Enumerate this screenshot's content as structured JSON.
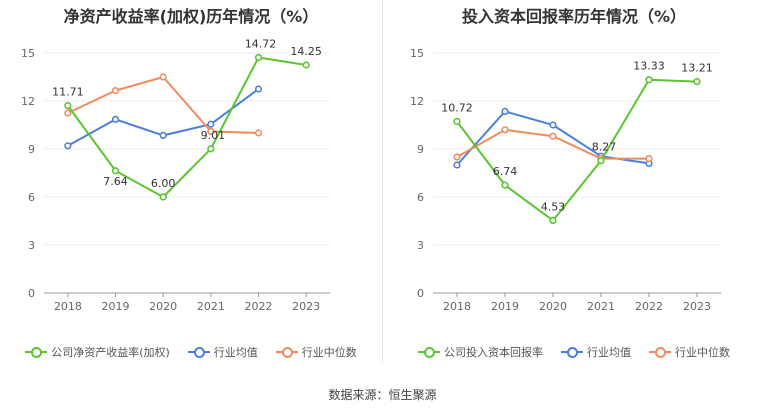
{
  "source_text": "数据来源：恒生聚源",
  "chart_data": [
    {
      "id": "left",
      "type": "line",
      "title": "净资产收益率(加权)历年情况（%）",
      "categories": [
        "2018",
        "2019",
        "2020",
        "2021",
        "2022",
        "2023"
      ],
      "yticks": [
        "0",
        "3",
        "6",
        "9",
        "12",
        "15"
      ],
      "ylim": [
        0,
        15
      ],
      "grid": true,
      "legend_position": "bottom",
      "series": [
        {
          "name": "公司净资产收益率(加权)",
          "color": "#5ac52e",
          "values": [
            11.71,
            7.64,
            6.0,
            9.01,
            14.72,
            14.25
          ],
          "labels": [
            "11.71",
            "7.64",
            "6.00",
            "9.01",
            "14.72",
            "14.25"
          ]
        },
        {
          "name": "行业均值",
          "color": "#4a7ee0",
          "values": [
            9.2,
            10.85,
            9.85,
            10.55,
            12.75,
            null
          ]
        },
        {
          "name": "行业中位数",
          "color": "#f48a5c",
          "values": [
            11.25,
            12.65,
            13.5,
            10.1,
            10.0,
            null
          ]
        }
      ]
    },
    {
      "id": "right",
      "type": "line",
      "title": "投入资本回报率历年情况（%）",
      "categories": [
        "2018",
        "2019",
        "2020",
        "2021",
        "2022",
        "2023"
      ],
      "yticks": [
        "0",
        "3",
        "6",
        "9",
        "12",
        "15"
      ],
      "ylim": [
        0,
        15
      ],
      "grid": true,
      "legend_position": "bottom",
      "series": [
        {
          "name": "公司投入资本回报率",
          "color": "#5ac52e",
          "values": [
            10.72,
            6.74,
            4.53,
            8.27,
            13.33,
            13.21
          ],
          "labels": [
            "10.72",
            "6.74",
            "4.53",
            "8.27",
            "13.33",
            "13.21"
          ]
        },
        {
          "name": "行业均值",
          "color": "#4a7ee0",
          "values": [
            8.0,
            11.35,
            10.5,
            8.55,
            8.1,
            null
          ]
        },
        {
          "name": "行业中位数",
          "color": "#f48a5c",
          "values": [
            8.5,
            10.2,
            9.8,
            8.4,
            8.4,
            null
          ]
        }
      ]
    }
  ]
}
